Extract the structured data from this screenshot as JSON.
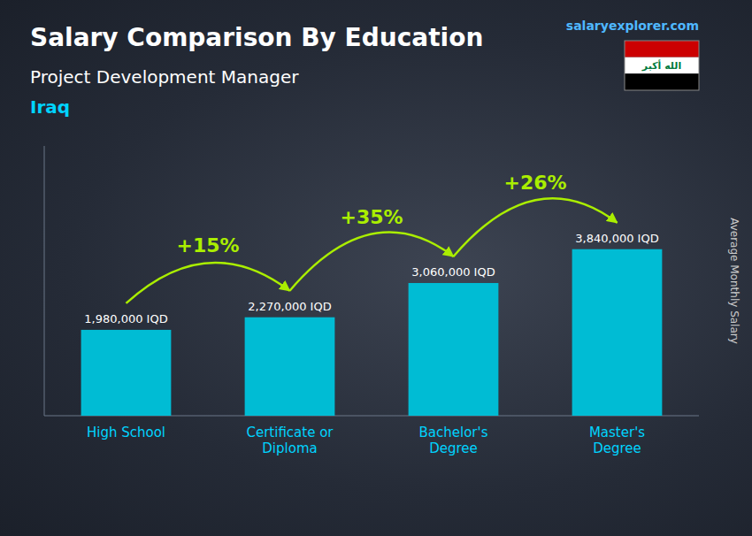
{
  "chart_data": {
    "type": "bar",
    "title": "Salary Comparison By Education",
    "subtitle": [
      "Project Development Manager",
      "Iraq"
    ],
    "source": "salaryexplorer.com",
    "emblem": "الله أكبر",
    "y_label": "Average Monthly Salary",
    "categories": [
      "High School",
      "Certificate or\nDiploma",
      "Bachelor's\nDegree",
      "Master's\nDegree"
    ],
    "values": [
      1980000,
      2270000,
      3060000,
      3840000
    ],
    "value_labels": [
      "1,980,000 IQD",
      "2,270,000 IQD",
      "3,060,000 IQD",
      "3,840,000 IQD"
    ],
    "annotations": [
      "+15%",
      "+35%",
      "+26%"
    ],
    "color": "#00bcd4",
    "ylim": [
      0,
      6220800
    ],
    "tick_labels": "x",
    "data_labels": true,
    "grid": false
  }
}
